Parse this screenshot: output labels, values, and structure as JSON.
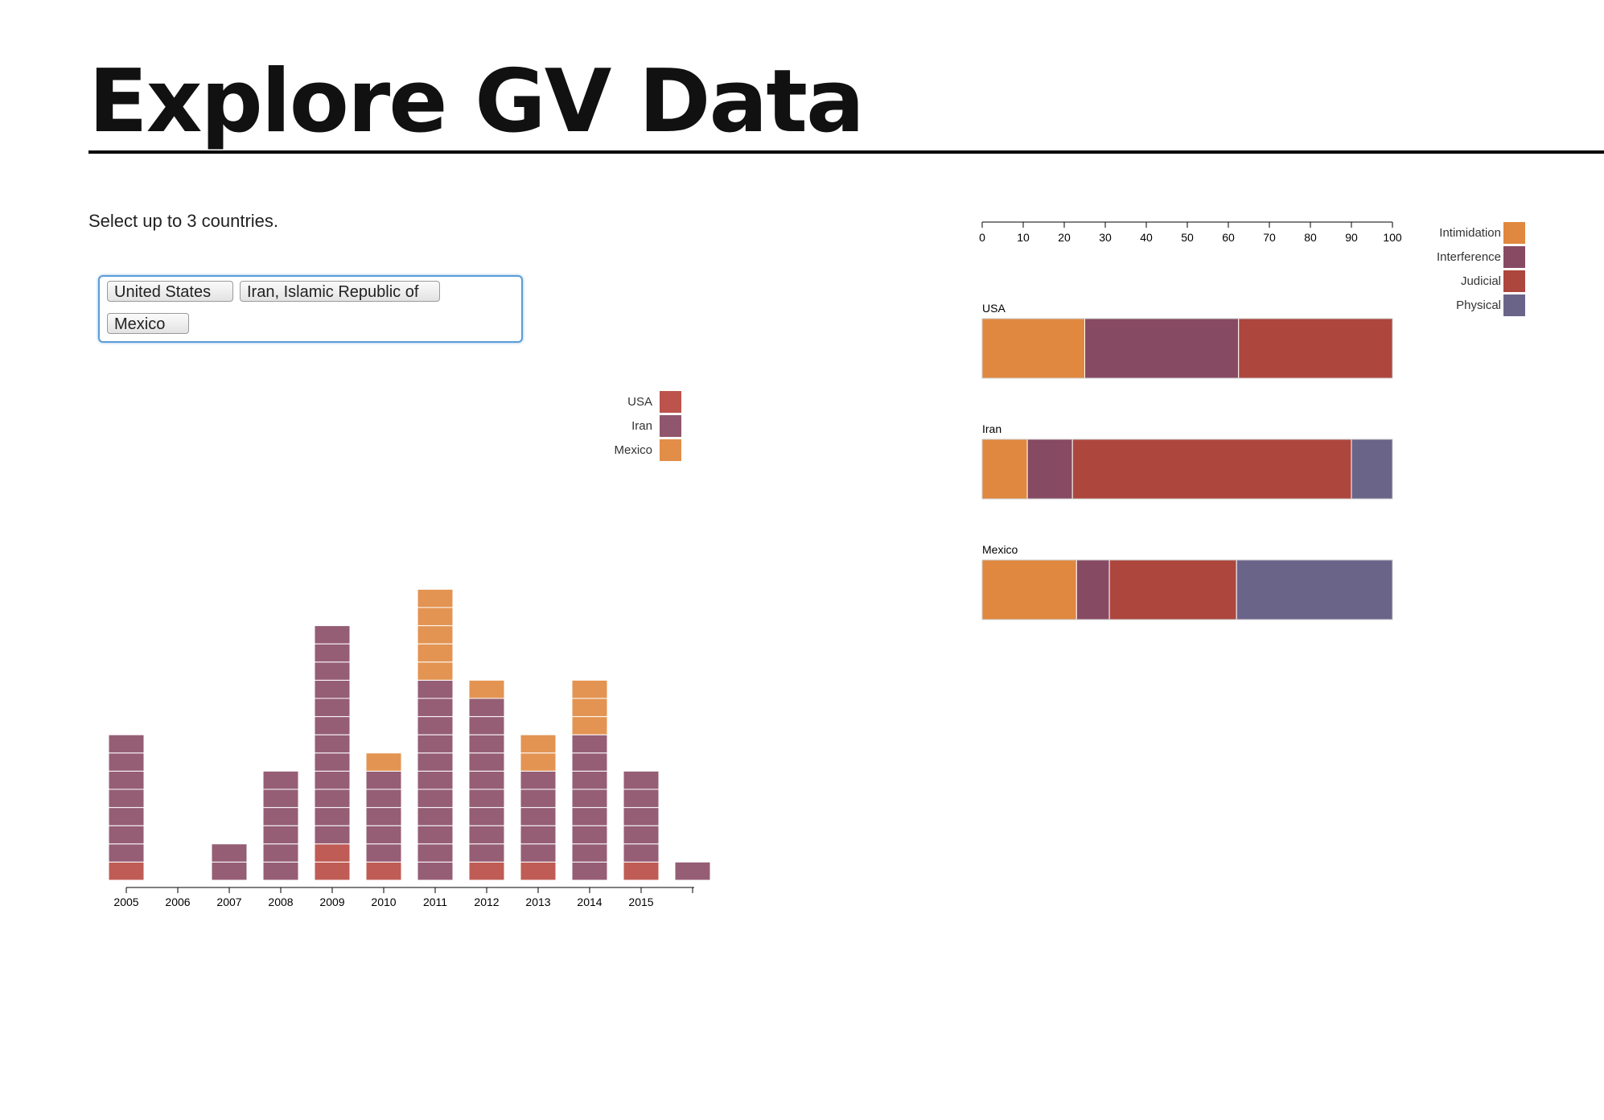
{
  "header": {
    "title": "Explore GV Data"
  },
  "selector": {
    "instruction": "Select up to 3 countries.",
    "selected": [
      "United States",
      "Iran, Islamic Republic of",
      "Mexico"
    ]
  },
  "colors": {
    "USA": "#b84a42",
    "Iran": "#8a4d66",
    "Mexico": "#e0883f",
    "Intimidation": "#e0883f",
    "Interference": "#874a63",
    "Judicial": "#ad463d",
    "Physical": "#6b6489"
  },
  "chart_data": [
    {
      "type": "bar",
      "stacked": true,
      "legend": [
        "USA",
        "Iran",
        "Mexico"
      ],
      "legend_position": "top-right",
      "categories": [
        "2005",
        "2006",
        "2007",
        "2008",
        "2009",
        "2010",
        "2011",
        "2012",
        "2013",
        "2014",
        "2015",
        ""
      ],
      "series": [
        {
          "name": "USA",
          "values": [
            1,
            0,
            0,
            0,
            2,
            1,
            0,
            1,
            1,
            0,
            1,
            0
          ]
        },
        {
          "name": "Iran",
          "values": [
            7,
            0,
            2,
            6,
            12,
            5,
            11,
            9,
            5,
            8,
            5,
            1
          ]
        },
        {
          "name": "Mexico",
          "values": [
            0,
            0,
            0,
            0,
            0,
            1,
            5,
            1,
            2,
            3,
            0,
            0
          ]
        }
      ],
      "grid": false
    },
    {
      "type": "bar",
      "orientation": "horizontal",
      "stacked": true,
      "categories": [
        "USA",
        "Iran",
        "Mexico"
      ],
      "x_ticks": [
        "0",
        "10",
        "20",
        "30",
        "40",
        "50",
        "60",
        "70",
        "80",
        "90",
        "100"
      ],
      "xlim": [
        0,
        100
      ],
      "legend": [
        "Intimidation",
        "Interference",
        "Judicial",
        "Physical"
      ],
      "legend_position": "top-right",
      "series": [
        {
          "name": "Intimidation",
          "values": [
            25,
            11,
            23
          ]
        },
        {
          "name": "Interference",
          "values": [
            37.5,
            11,
            8
          ]
        },
        {
          "name": "Judicial",
          "values": [
            37.5,
            68,
            31
          ]
        },
        {
          "name": "Physical",
          "values": [
            0,
            10,
            38
          ]
        }
      ],
      "grid": false
    }
  ]
}
